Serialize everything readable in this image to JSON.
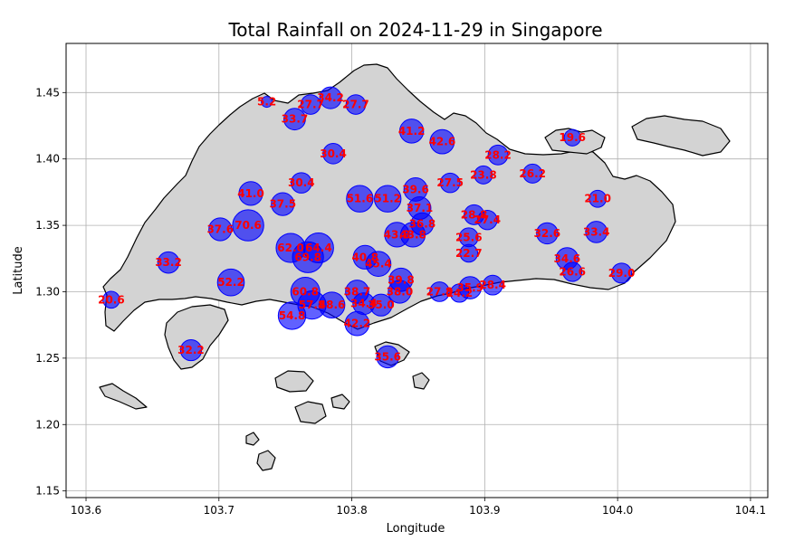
{
  "chart_data": {
    "type": "scatter",
    "title": "Total Rainfall on 2024-11-29 in Singapore",
    "xlabel": "Longitude",
    "ylabel": "Latitude",
    "xlim": [
      103.585,
      104.113
    ],
    "ylim": [
      1.145,
      1.487
    ],
    "x_ticks": [
      103.6,
      103.7,
      103.8,
      103.9,
      104.0,
      104.1
    ],
    "y_ticks": [
      1.15,
      1.2,
      1.25,
      1.3,
      1.35,
      1.4,
      1.45
    ],
    "x_tick_labels": [
      "103.6",
      "103.7",
      "103.8",
      "103.9",
      "104.0",
      "104.1"
    ],
    "y_tick_labels": [
      "1.15",
      "1.20",
      "1.25",
      "1.30",
      "1.35",
      "1.40",
      "1.45"
    ],
    "grid": true,
    "marker_color": "#0000ff",
    "label_color": "#ff0000",
    "land_color": "#d3d3d3",
    "points": [
      {
        "lon": 103.736,
        "lat": 1.443,
        "value": 5.2,
        "label": "5.2"
      },
      {
        "lon": 103.757,
        "lat": 1.43,
        "value": 33.7,
        "label": "33.7"
      },
      {
        "lon": 103.769,
        "lat": 1.441,
        "value": 27.7,
        "label": "27.7"
      },
      {
        "lon": 103.784,
        "lat": 1.446,
        "value": 34.2,
        "label": "34.2"
      },
      {
        "lon": 103.803,
        "lat": 1.441,
        "value": 27.7,
        "label": "27.7"
      },
      {
        "lon": 103.786,
        "lat": 1.404,
        "value": 30.4,
        "label": "30.4"
      },
      {
        "lon": 103.845,
        "lat": 1.421,
        "value": 41.2,
        "label": "41.2"
      },
      {
        "lon": 103.868,
        "lat": 1.413,
        "value": 42.6,
        "label": "42.6"
      },
      {
        "lon": 103.91,
        "lat": 1.403,
        "value": 28.2,
        "label": "28.2"
      },
      {
        "lon": 103.966,
        "lat": 1.416,
        "value": 19.6,
        "label": "19.6"
      },
      {
        "lon": 103.762,
        "lat": 1.382,
        "value": 30.4,
        "label": "30.4"
      },
      {
        "lon": 103.724,
        "lat": 1.374,
        "value": 41.0,
        "label": "41.0"
      },
      {
        "lon": 103.748,
        "lat": 1.366,
        "value": 37.5,
        "label": "37.5"
      },
      {
        "lon": 103.701,
        "lat": 1.347,
        "value": 37.6,
        "label": "37.6"
      },
      {
        "lon": 103.722,
        "lat": 1.35,
        "value": 70.6,
        "label": "70.6"
      },
      {
        "lon": 103.806,
        "lat": 1.37,
        "value": 51.6,
        "label": "51.6"
      },
      {
        "lon": 103.827,
        "lat": 1.37,
        "value": 51.2,
        "label": "51.2"
      },
      {
        "lon": 103.848,
        "lat": 1.377,
        "value": 39.6,
        "label": "39.6"
      },
      {
        "lon": 103.874,
        "lat": 1.382,
        "value": 27.5,
        "label": "27.5"
      },
      {
        "lon": 103.899,
        "lat": 1.388,
        "value": 23.8,
        "label": "23.8"
      },
      {
        "lon": 103.936,
        "lat": 1.389,
        "value": 26.2,
        "label": "26.2"
      },
      {
        "lon": 103.851,
        "lat": 1.363,
        "value": 37.1,
        "label": "37.1"
      },
      {
        "lon": 103.853,
        "lat": 1.351,
        "value": 36.8,
        "label": "36.8"
      },
      {
        "lon": 103.892,
        "lat": 1.358,
        "value": 28.8,
        "label": "28.8"
      },
      {
        "lon": 103.902,
        "lat": 1.354,
        "value": 27.4,
        "label": "27.4"
      },
      {
        "lon": 103.985,
        "lat": 1.37,
        "value": 21.0,
        "label": "21.0"
      },
      {
        "lon": 103.947,
        "lat": 1.344,
        "value": 32.6,
        "label": "32.6"
      },
      {
        "lon": 103.984,
        "lat": 1.345,
        "value": 33.4,
        "label": "33.4"
      },
      {
        "lon": 103.834,
        "lat": 1.343,
        "value": 43.8,
        "label": "43.8"
      },
      {
        "lon": 103.846,
        "lat": 1.343,
        "value": 43.8,
        "label": "43.8"
      },
      {
        "lon": 103.888,
        "lat": 1.341,
        "value": 25.6,
        "label": "25.6"
      },
      {
        "lon": 103.888,
        "lat": 1.329,
        "value": 22.7,
        "label": "22.7"
      },
      {
        "lon": 103.754,
        "lat": 1.333,
        "value": 62.0,
        "label": "62.0"
      },
      {
        "lon": 103.775,
        "lat": 1.333,
        "value": 64.4,
        "label": "64.4"
      },
      {
        "lon": 103.767,
        "lat": 1.326,
        "value": 69.8,
        "label": "69.8"
      },
      {
        "lon": 103.81,
        "lat": 1.326,
        "value": 40.8,
        "label": "40.8"
      },
      {
        "lon": 103.82,
        "lat": 1.321,
        "value": 45.4,
        "label": "45.4"
      },
      {
        "lon": 103.662,
        "lat": 1.322,
        "value": 33.2,
        "label": "33.2"
      },
      {
        "lon": 103.962,
        "lat": 1.325,
        "value": 34.6,
        "label": "34.6"
      },
      {
        "lon": 103.966,
        "lat": 1.315,
        "value": 26.6,
        "label": "26.6"
      },
      {
        "lon": 104.003,
        "lat": 1.314,
        "value": 29.0,
        "label": "29.0"
      },
      {
        "lon": 103.837,
        "lat": 1.309,
        "value": 39.8,
        "label": "39.8"
      },
      {
        "lon": 103.619,
        "lat": 1.294,
        "value": 20.6,
        "label": "20.6"
      },
      {
        "lon": 103.709,
        "lat": 1.307,
        "value": 52.2,
        "label": "52.2"
      },
      {
        "lon": 103.889,
        "lat": 1.303,
        "value": 35.9,
        "label": "35.9"
      },
      {
        "lon": 103.906,
        "lat": 1.305,
        "value": 28.4,
        "label": "28.4"
      },
      {
        "lon": 103.765,
        "lat": 1.3,
        "value": 60.8,
        "label": "60.8"
      },
      {
        "lon": 103.804,
        "lat": 1.3,
        "value": 38.7,
        "label": "38.7"
      },
      {
        "lon": 103.836,
        "lat": 1.3,
        "value": 38.0,
        "label": "38.0"
      },
      {
        "lon": 103.866,
        "lat": 1.3,
        "value": 27.8,
        "label": "27.8"
      },
      {
        "lon": 103.881,
        "lat": 1.299,
        "value": 24.2,
        "label": "24.2"
      },
      {
        "lon": 103.77,
        "lat": 1.29,
        "value": 57.8,
        "label": "57.8"
      },
      {
        "lon": 103.785,
        "lat": 1.29,
        "value": 48.6,
        "label": "48.6"
      },
      {
        "lon": 103.809,
        "lat": 1.291,
        "value": 34.4,
        "label": "34.4"
      },
      {
        "lon": 103.822,
        "lat": 1.29,
        "value": 35.0,
        "label": "35.0"
      },
      {
        "lon": 103.755,
        "lat": 1.282,
        "value": 54.8,
        "label": "54.8"
      },
      {
        "lon": 103.804,
        "lat": 1.276,
        "value": 42.2,
        "label": "42.2"
      },
      {
        "lon": 103.679,
        "lat": 1.256,
        "value": 32.2,
        "label": "32.2"
      },
      {
        "lon": 103.827,
        "lat": 1.251,
        "value": 35.6,
        "label": "35.6"
      }
    ]
  }
}
